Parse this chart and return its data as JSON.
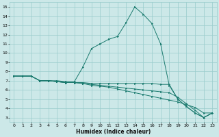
{
  "title": "",
  "xlabel": "Humidex (Indice chaleur)",
  "background_color": "#cce8e8",
  "grid_color": "#99cccc",
  "line_color": "#1a7a6e",
  "xlim": [
    -0.5,
    23.5
  ],
  "ylim": [
    2.5,
    15.5
  ],
  "xticks": [
    0,
    1,
    2,
    3,
    4,
    5,
    6,
    7,
    8,
    9,
    10,
    11,
    12,
    13,
    14,
    15,
    16,
    17,
    18,
    19,
    20,
    21,
    22,
    23
  ],
  "yticks": [
    3,
    4,
    5,
    6,
    7,
    8,
    9,
    10,
    11,
    12,
    13,
    14,
    15
  ],
  "line1_x": [
    0,
    1,
    2,
    3,
    4,
    5,
    6,
    7,
    8,
    9,
    10,
    11,
    12,
    13,
    14,
    15,
    16,
    17,
    18,
    19,
    20,
    21,
    22,
    23
  ],
  "line1_y": [
    7.5,
    7.5,
    7.5,
    7.0,
    7.0,
    7.0,
    6.9,
    6.9,
    8.5,
    10.5,
    11.0,
    11.5,
    11.8,
    13.3,
    15.0,
    14.2,
    13.2,
    11.0,
    6.5,
    5.0,
    4.2,
    3.5,
    3.0,
    3.5
  ],
  "line2_x": [
    0,
    1,
    2,
    3,
    4,
    5,
    6,
    7,
    8,
    9,
    10,
    11,
    12,
    13,
    14,
    15,
    16,
    17,
    18,
    19,
    20,
    21,
    22,
    23
  ],
  "line2_y": [
    7.5,
    7.5,
    7.5,
    7.0,
    7.0,
    6.9,
    6.8,
    6.8,
    6.8,
    6.7,
    6.7,
    6.7,
    6.7,
    6.7,
    6.7,
    6.7,
    6.7,
    6.6,
    6.6,
    5.0,
    4.2,
    3.5,
    3.0,
    3.5
  ],
  "line3_x": [
    0,
    1,
    2,
    3,
    4,
    5,
    6,
    7,
    8,
    9,
    10,
    11,
    12,
    13,
    14,
    15,
    16,
    17,
    18,
    19,
    20,
    21,
    22,
    23
  ],
  "line3_y": [
    7.5,
    7.5,
    7.5,
    7.0,
    7.0,
    6.9,
    6.8,
    6.8,
    6.7,
    6.6,
    6.5,
    6.4,
    6.3,
    6.2,
    6.1,
    6.0,
    5.9,
    5.8,
    5.7,
    5.2,
    4.5,
    3.8,
    3.0,
    3.5
  ],
  "line4_x": [
    0,
    1,
    2,
    3,
    4,
    5,
    6,
    7,
    8,
    9,
    10,
    11,
    12,
    13,
    14,
    15,
    16,
    17,
    18,
    19,
    20,
    21,
    22,
    23
  ],
  "line4_y": [
    7.5,
    7.5,
    7.5,
    7.0,
    7.0,
    6.9,
    6.8,
    6.8,
    6.7,
    6.5,
    6.4,
    6.3,
    6.1,
    5.9,
    5.7,
    5.5,
    5.3,
    5.1,
    4.9,
    4.7,
    4.4,
    4.1,
    3.5,
    3.5
  ]
}
